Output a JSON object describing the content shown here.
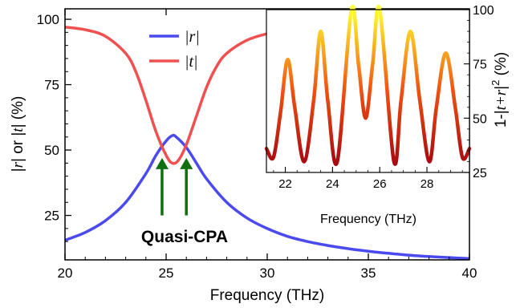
{
  "chart_data": [
    {
      "type": "line",
      "xlabel": "Frequency (THz)",
      "ylabel_parts": [
        "|",
        "r",
        "| or |",
        "t",
        "| (%)"
      ],
      "xlim": [
        20,
        40
      ],
      "ylim": [
        8,
        104
      ],
      "xticks": [
        20,
        25,
        30,
        35,
        40
      ],
      "yticks": [
        25,
        50,
        75,
        100
      ],
      "legend_position": "top-right",
      "series": [
        {
          "name": "|r|",
          "color": "#4a4aee",
          "x": [
            20,
            21,
            22,
            23,
            24,
            24.5,
            25,
            25.3,
            25.5,
            26,
            26.5,
            27,
            28,
            29,
            30,
            31,
            32,
            33,
            34,
            35,
            36,
            37,
            38,
            39,
            40
          ],
          "y": [
            15.5,
            18.5,
            23,
            30,
            41,
            48,
            53.5,
            55.5,
            55,
            51,
            45,
            39,
            30,
            24,
            20,
            17,
            15,
            13.5,
            12.3,
            11.3,
            10.5,
            9.8,
            9.3,
            8.9,
            8.5
          ]
        },
        {
          "name": "|t|",
          "color": "#f05050",
          "x": [
            20,
            21,
            22,
            23,
            23.5,
            24,
            24.5,
            25,
            25.3,
            25.6,
            26,
            26.5,
            27,
            27.5,
            28,
            29,
            30,
            31
          ],
          "y": [
            97,
            96,
            93.5,
            87,
            80,
            69,
            57,
            48,
            45,
            46,
            52,
            63,
            74,
            82,
            87,
            92,
            94.5,
            96
          ]
        }
      ],
      "annotations": [
        {
          "text": "Quasi-CPA",
          "arrows_at_x": [
            24.8,
            26.0
          ]
        }
      ]
    },
    {
      "type": "line",
      "inset": true,
      "xlabel": "Frequency (THz)",
      "ylabel_parts": [
        "1-|",
        "t+r",
        "|",
        "2",
        " (%)"
      ],
      "xlim": [
        21.2,
        29.8
      ],
      "ylim": [
        25,
        100
      ],
      "xticks": [
        22,
        24,
        26,
        28
      ],
      "yticks": [
        25,
        50,
        75,
        100
      ],
      "color_low": "#a00010",
      "color_mid": "#f05010",
      "color_high": "#ffff30",
      "series": [
        {
          "x": [
            21.2,
            21.5,
            21.8,
            22.1,
            22.4,
            22.8,
            23.2,
            23.5,
            23.8,
            24.2,
            24.8,
            25.1,
            25.4,
            25.7,
            26.0,
            26.6,
            26.9,
            27.3,
            27.7,
            28.1,
            28.4,
            28.8,
            29.2,
            29.5,
            29.8
          ],
          "y": [
            36,
            32,
            53,
            77,
            55,
            30,
            58,
            90,
            58,
            30,
            100,
            75,
            50,
            75,
            100,
            30,
            58,
            90,
            58,
            30,
            55,
            80,
            55,
            32,
            36
          ]
        }
      ]
    }
  ]
}
